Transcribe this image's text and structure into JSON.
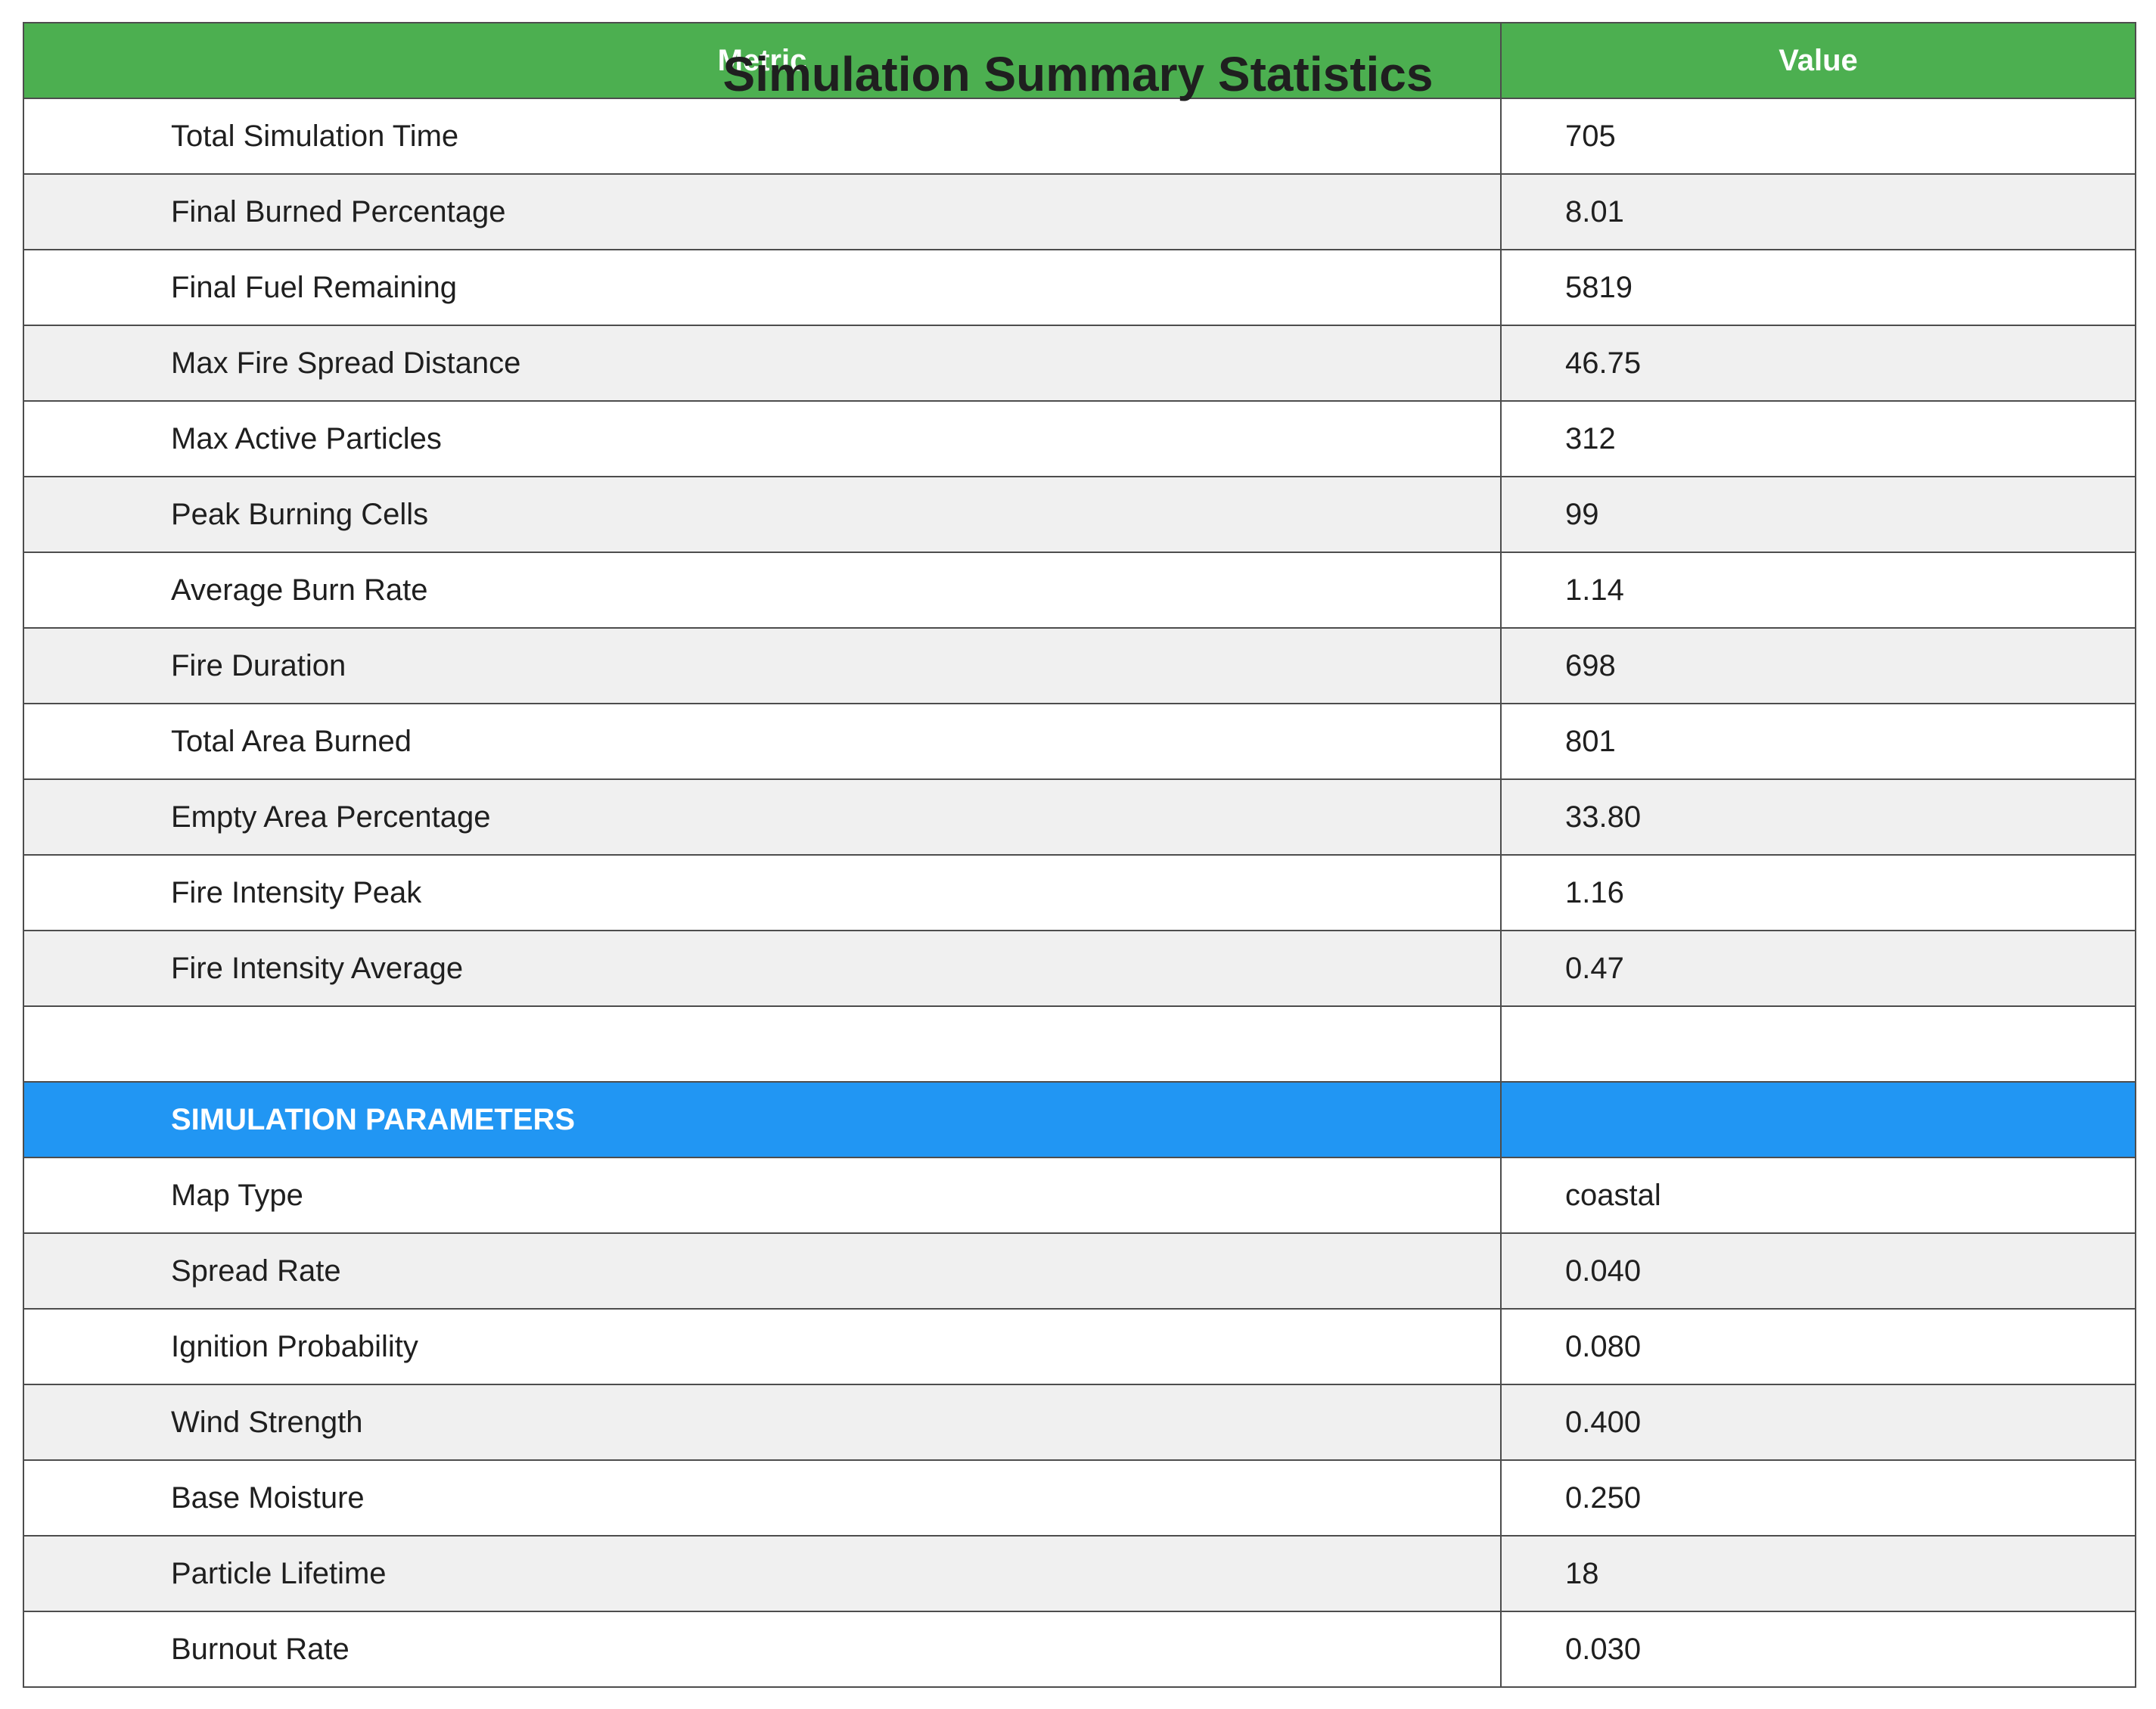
{
  "chart_data": {
    "type": "table",
    "title": "Simulation Summary Statistics",
    "columns": [
      "Metric",
      "Value"
    ],
    "header_color": "#4caf50",
    "section_color": "#2196f3",
    "stripe_color": "#f0f0f0",
    "rows": [
      {
        "kind": "data",
        "metric": "Total Simulation Time",
        "value": "705"
      },
      {
        "kind": "data",
        "metric": "Final Burned Percentage",
        "value": "8.01"
      },
      {
        "kind": "data",
        "metric": "Final Fuel Remaining",
        "value": "5819"
      },
      {
        "kind": "data",
        "metric": "Max Fire Spread Distance",
        "value": "46.75"
      },
      {
        "kind": "data",
        "metric": "Max Active Particles",
        "value": "312"
      },
      {
        "kind": "data",
        "metric": "Peak Burning Cells",
        "value": "99"
      },
      {
        "kind": "data",
        "metric": "Average Burn Rate",
        "value": "1.14"
      },
      {
        "kind": "data",
        "metric": "Fire Duration",
        "value": "698"
      },
      {
        "kind": "data",
        "metric": "Total Area Burned",
        "value": "801"
      },
      {
        "kind": "data",
        "metric": "Empty Area Percentage",
        "value": "33.80"
      },
      {
        "kind": "data",
        "metric": "Fire Intensity Peak",
        "value": "1.16"
      },
      {
        "kind": "data",
        "metric": "Fire Intensity Average",
        "value": "0.47"
      },
      {
        "kind": "blank",
        "metric": "",
        "value": ""
      },
      {
        "kind": "section",
        "metric": "SIMULATION PARAMETERS",
        "value": ""
      },
      {
        "kind": "data",
        "metric": "Map Type",
        "value": "coastal"
      },
      {
        "kind": "data",
        "metric": "Spread Rate",
        "value": "0.040"
      },
      {
        "kind": "data",
        "metric": "Ignition Probability",
        "value": "0.080"
      },
      {
        "kind": "data",
        "metric": "Wind Strength",
        "value": "0.400"
      },
      {
        "kind": "data",
        "metric": "Base Moisture",
        "value": "0.250"
      },
      {
        "kind": "data",
        "metric": "Particle Lifetime",
        "value": "18"
      },
      {
        "kind": "data",
        "metric": "Burnout Rate",
        "value": "0.030"
      }
    ]
  }
}
